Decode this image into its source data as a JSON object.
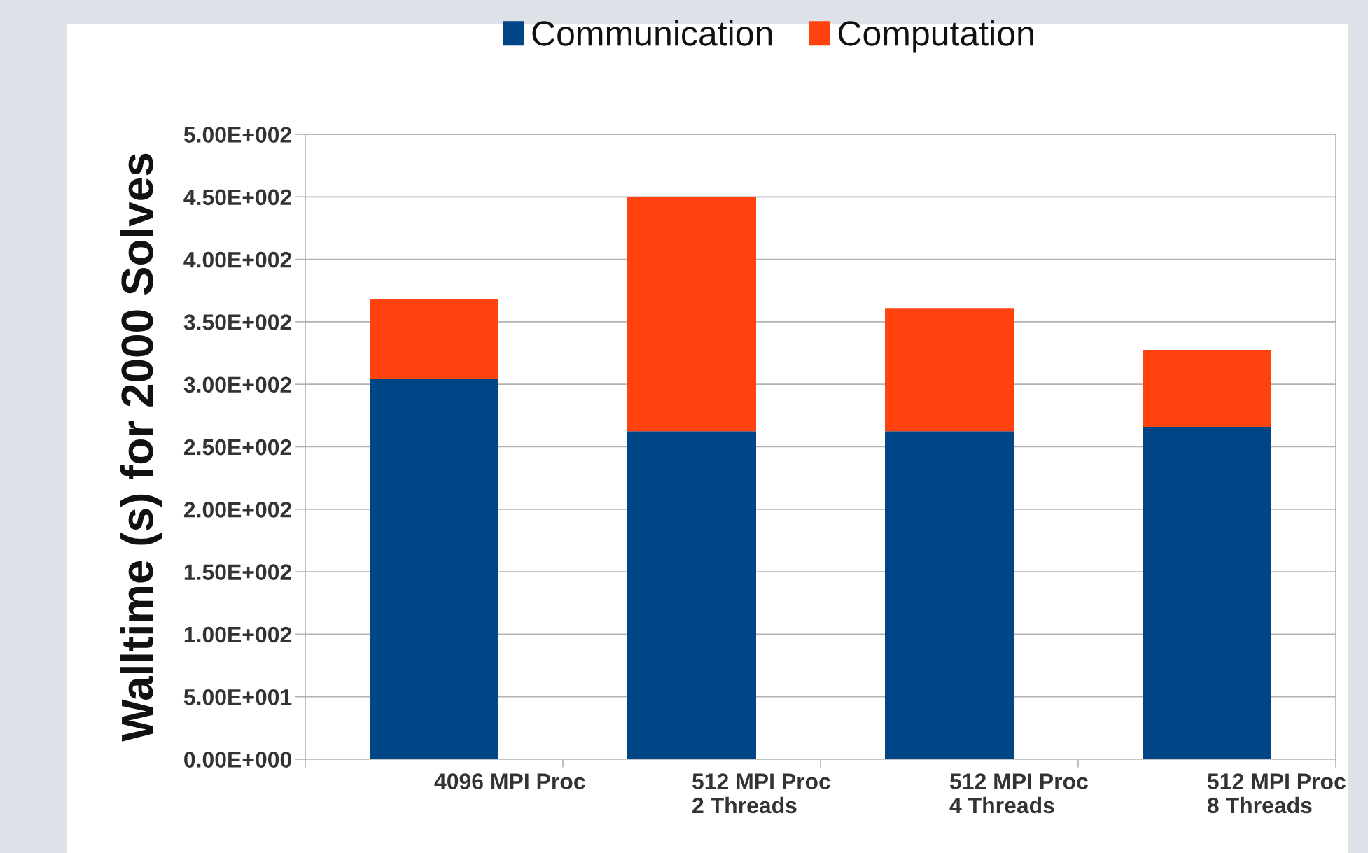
{
  "chart_data": {
    "type": "bar",
    "stacked": true,
    "ylabel": "Walltime (s) for 2000 Solves",
    "categories": [
      "4096 MPI Proc",
      "512 MPI Proc\n2 Threads",
      "512 MPI Proc\n4 Threads",
      "512 MPI Proc\n8 Threads"
    ],
    "series": [
      {
        "name": "Communication",
        "color": "#004586",
        "values": [
          304.5,
          262.5,
          262.5,
          266
        ]
      },
      {
        "name": "Computation",
        "color": "#ff420e",
        "values": [
          63.5,
          187.5,
          98.5,
          61.5
        ]
      }
    ],
    "ylim": [
      0,
      500
    ],
    "yticks": [
      {
        "value": 0,
        "label": "0.00E+000"
      },
      {
        "value": 50,
        "label": "5.00E+001"
      },
      {
        "value": 100,
        "label": "1.00E+002"
      },
      {
        "value": 150,
        "label": "1.50E+002"
      },
      {
        "value": 200,
        "label": "2.00E+002"
      },
      {
        "value": 250,
        "label": "2.50E+002"
      },
      {
        "value": 300,
        "label": "3.00E+002"
      },
      {
        "value": 350,
        "label": "3.50E+002"
      },
      {
        "value": 400,
        "label": "4.00E+002"
      },
      {
        "value": 450,
        "label": "4.50E+002"
      },
      {
        "value": 500,
        "label": "5.00E+002"
      }
    ],
    "grid": "y",
    "legend": "top"
  }
}
